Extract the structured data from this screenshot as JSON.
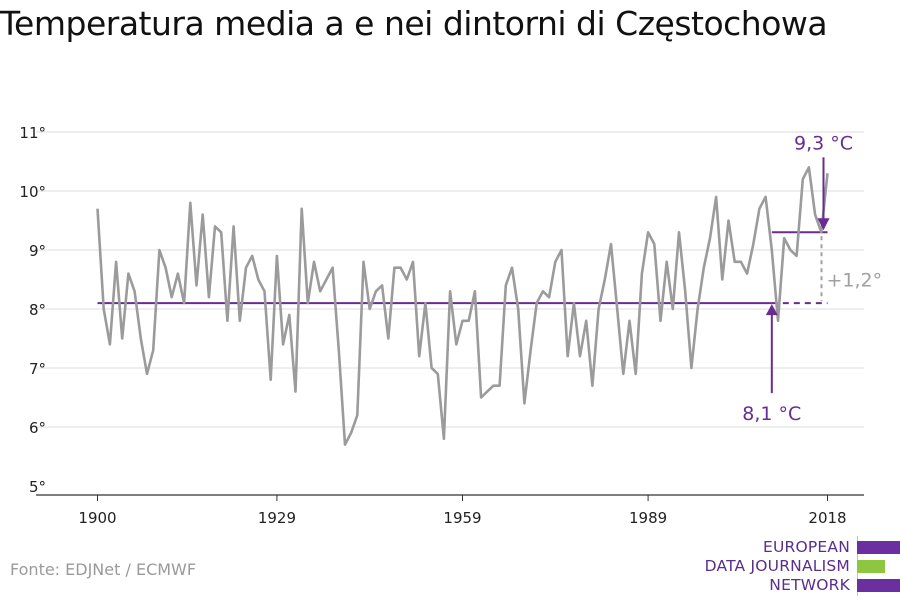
{
  "title": "Temperatura media a e nei dintorni di Częstochowa",
  "source": "Fonte: EDJNet / ECMWF",
  "logo": {
    "line1": "EUROPEAN",
    "line2": "DATA JOURNALISM",
    "line3": "NETWORK",
    "colors": [
      "#6b2fa0",
      "#8dc63f",
      "#6b2fa0"
    ]
  },
  "colors": {
    "series": "#9b9b9b",
    "accent": "#6a2c91",
    "grid": "#dddddd",
    "axis": "#333333"
  },
  "chart_data": {
    "type": "line",
    "title": "Temperatura media a e nei dintorni di Częstochowa",
    "xlabel": "",
    "ylabel": "",
    "xlim": [
      1900,
      2018
    ],
    "ylim": [
      5,
      11
    ],
    "grid": true,
    "x_ticks": [
      1900,
      1929,
      1959,
      1989,
      2018
    ],
    "x_tick_labels": [
      "1900",
      "1929",
      "1959",
      "1989",
      "2018"
    ],
    "y_ticks": [
      5,
      6,
      7,
      8,
      9,
      10,
      11
    ],
    "y_tick_labels": [
      "5°",
      "6°",
      "7°",
      "8°",
      "9°",
      "10°",
      "11°"
    ],
    "series": [
      {
        "x": [
          1900,
          1901,
          1902,
          1903,
          1904,
          1905,
          1906,
          1907,
          1908,
          1909,
          1910,
          1911,
          1912,
          1913,
          1914,
          1915,
          1916,
          1917,
          1918,
          1919,
          1920,
          1921,
          1922,
          1923,
          1924,
          1925,
          1926,
          1927,
          1928,
          1929,
          1930,
          1931,
          1932,
          1933,
          1934,
          1935,
          1936,
          1937,
          1938,
          1939,
          1940,
          1941,
          1942,
          1943,
          1944,
          1945,
          1946,
          1947,
          1948,
          1949,
          1950,
          1951,
          1952,
          1953,
          1954,
          1955,
          1956,
          1957,
          1958,
          1959,
          1960,
          1961,
          1962,
          1963,
          1964,
          1965,
          1966,
          1967,
          1968,
          1969,
          1970,
          1971,
          1972,
          1973,
          1974,
          1975,
          1976,
          1977,
          1978,
          1979,
          1980,
          1981,
          1982,
          1983,
          1984,
          1985,
          1986,
          1987,
          1988,
          1989,
          1990,
          1991,
          1992,
          1993,
          1994,
          1995,
          1996,
          1997,
          1998,
          1999,
          2000,
          2001,
          2002,
          2003,
          2004,
          2005,
          2006,
          2007,
          2008,
          2009,
          2010,
          2011,
          2012,
          2013,
          2014,
          2015,
          2016,
          2017,
          2018
        ],
        "values": [
          9.7,
          8.0,
          7.4,
          8.8,
          7.5,
          8.6,
          8.3,
          7.5,
          6.9,
          7.3,
          9.0,
          8.7,
          8.2,
          8.6,
          8.1,
          9.8,
          8.4,
          9.6,
          8.2,
          9.4,
          9.3,
          7.8,
          9.4,
          7.8,
          8.7,
          8.9,
          8.5,
          8.3,
          6.8,
          8.9,
          7.4,
          7.9,
          6.6,
          9.7,
          8.1,
          8.8,
          8.3,
          8.5,
          8.7,
          7.3,
          5.7,
          5.9,
          6.2,
          8.8,
          8.0,
          8.3,
          8.4,
          7.5,
          8.7,
          8.7,
          8.5,
          8.8,
          7.2,
          8.1,
          7.0,
          6.9,
          5.8,
          8.3,
          7.4,
          7.8,
          7.8,
          8.3,
          6.5,
          6.6,
          6.7,
          6.7,
          8.4,
          8.7,
          8.0,
          6.4,
          7.3,
          8.1,
          8.3,
          8.2,
          8.8,
          9.0,
          7.2,
          8.1,
          7.2,
          7.8,
          6.7,
          8.0,
          8.5,
          9.1,
          8.0,
          6.9,
          7.8,
          6.9,
          8.6,
          9.3,
          9.1,
          7.8,
          8.8,
          8.0,
          9.3,
          8.3,
          7.0,
          8.0,
          8.7,
          9.2,
          9.9,
          8.5,
          9.5,
          8.8,
          8.8,
          8.6,
          9.1,
          9.7,
          9.9,
          9.0,
          7.8,
          9.2,
          9.0,
          8.9,
          10.2,
          10.4,
          9.6,
          9.3,
          10.3
        ]
      }
    ],
    "annotations": {
      "baseline_value": 8.1,
      "baseline_label": "8,1 °C",
      "recent_value": 9.3,
      "recent_label": "9,3 °C",
      "recent_start_year": 2009,
      "delta_label": "+1,2°"
    }
  }
}
